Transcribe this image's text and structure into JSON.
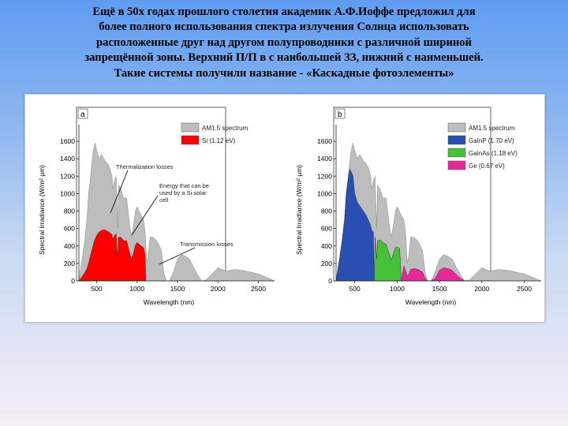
{
  "slide": {
    "lines": [
      "Ещё в 50х годах прошлого столетия академик А.Ф.Иоффе предложил для",
      "более полного использования спектра излучения Солнца использовать",
      "расположенные друг над другом полупроводники с различной шириной",
      "запрещённой зоны. Верхний  П/П в с наибольшей ЗЗ, нижний с наименьшей.",
      "Такие системы получили название - «Каскадные фотоэлементы»"
    ]
  },
  "colors": {
    "spectrum": "#bdbdbd",
    "si": "#ff0000",
    "gainp": "#2a4fb4",
    "gainas": "#46c23a",
    "ge": "#e8289a"
  },
  "chart_data": [
    {
      "type": "area",
      "panel_label": "a",
      "xlabel": "Wavelength (nm)",
      "ylabel": "Spectral Irradiance (W/m² µm)",
      "xlim": [
        280,
        2700
      ],
      "ylim": [
        0,
        1700
      ],
      "xticks": [
        500,
        1000,
        1500,
        2000,
        2500
      ],
      "yticks": [
        0,
        200,
        400,
        600,
        800,
        1000,
        1200,
        1400,
        1600
      ],
      "legend_placement": "top-right",
      "series": [
        {
          "name": "AM1.5 spectrum",
          "color": "#bdbdbd",
          "x": [
            280,
            320,
            350,
            380,
            400,
            420,
            440,
            460,
            480,
            500,
            530,
            560,
            600,
            630,
            660,
            690,
            700,
            720,
            740,
            760,
            770,
            800,
            830,
            870,
            900,
            930,
            950,
            980,
            1000,
            1050,
            1080,
            1100,
            1120,
            1140,
            1160,
            1200,
            1250,
            1300,
            1330,
            1360,
            1400,
            1450,
            1500,
            1550,
            1600,
            1650,
            1700,
            1760,
            1800,
            1850,
            1950,
            2000,
            2100,
            2200,
            2300,
            2400,
            2500,
            2600,
            2700
          ],
          "y": [
            0,
            250,
            450,
            700,
            1000,
            1150,
            1350,
            1500,
            1580,
            1500,
            1400,
            1450,
            1380,
            1350,
            1300,
            1200,
            1050,
            1150,
            1200,
            600,
            1100,
            1050,
            950,
            950,
            700,
            500,
            600,
            800,
            850,
            750,
            700,
            550,
            200,
            300,
            500,
            500,
            450,
            350,
            100,
            0,
            0,
            100,
            250,
            300,
            280,
            250,
            150,
            50,
            0,
            10,
            100,
            150,
            110,
            130,
            120,
            100,
            80,
            40,
            0
          ]
        },
        {
          "name": "Si (1.12 eV)",
          "color": "#ff0000",
          "x": [
            280,
            320,
            350,
            380,
            400,
            420,
            440,
            460,
            480,
            500,
            530,
            560,
            600,
            630,
            660,
            690,
            700,
            720,
            740,
            760,
            770,
            800,
            830,
            870,
            900,
            930,
            950,
            980,
            1000,
            1050,
            1080,
            1100,
            1107
          ],
          "y": [
            0,
            50,
            90,
            140,
            200,
            280,
            350,
            420,
            480,
            520,
            560,
            580,
            585,
            570,
            555,
            530,
            470,
            520,
            540,
            260,
            500,
            500,
            460,
            460,
            350,
            250,
            300,
            410,
            440,
            400,
            380,
            300,
            0
          ]
        }
      ],
      "annotations": [
        "Thermalization losses",
        "Energy that can be used by a Si solar cell",
        "Transmission losses"
      ]
    },
    {
      "type": "area",
      "panel_label": "b",
      "xlabel": "Wavelength (nm)",
      "ylabel": "Spectral Irradiance (W/m² µm)",
      "xlim": [
        280,
        2700
      ],
      "ylim": [
        0,
        1700
      ],
      "xticks": [
        500,
        1000,
        1500,
        2000,
        2500
      ],
      "yticks": [
        0,
        200,
        400,
        600,
        800,
        1000,
        1200,
        1400,
        1600
      ],
      "legend_placement": "top-right",
      "series": [
        {
          "name": "AM1.5 spectrum",
          "color": "#bdbdbd",
          "x": [
            280,
            320,
            350,
            380,
            400,
            420,
            440,
            460,
            480,
            500,
            530,
            560,
            600,
            630,
            660,
            690,
            700,
            720,
            740,
            760,
            770,
            800,
            830,
            870,
            900,
            930,
            950,
            980,
            1000,
            1050,
            1080,
            1100,
            1120,
            1140,
            1160,
            1200,
            1250,
            1300,
            1330,
            1360,
            1400,
            1450,
            1500,
            1550,
            1600,
            1650,
            1700,
            1760,
            1800,
            1850,
            1950,
            2000,
            2100,
            2200,
            2300,
            2400,
            2500,
            2600,
            2700
          ],
          "y": [
            0,
            250,
            450,
            700,
            1000,
            1150,
            1350,
            1500,
            1580,
            1500,
            1400,
            1450,
            1380,
            1350,
            1300,
            1200,
            1050,
            1150,
            1200,
            600,
            1100,
            1050,
            950,
            950,
            700,
            500,
            600,
            800,
            850,
            750,
            700,
            550,
            200,
            300,
            500,
            500,
            450,
            350,
            100,
            0,
            0,
            100,
            250,
            300,
            280,
            250,
            150,
            50,
            0,
            10,
            100,
            150,
            110,
            130,
            120,
            100,
            80,
            40,
            0
          ]
        },
        {
          "name": "GaInP (1.70 eV)",
          "color": "#2a4fb4",
          "x": [
            280,
            320,
            350,
            380,
            400,
            420,
            440,
            460,
            480,
            500,
            530,
            560,
            600,
            630,
            660,
            690,
            700,
            720,
            730
          ],
          "y": [
            0,
            250,
            450,
            700,
            1000,
            1150,
            1280,
            1250,
            1200,
            1000,
            900,
            860,
            800,
            760,
            700,
            630,
            580,
            560,
            0
          ]
        },
        {
          "name": "GaInAs (1.18 eV)",
          "color": "#46c23a",
          "x": [
            730,
            740,
            760,
            770,
            800,
            830,
            870,
            900,
            930,
            950,
            980,
            1000,
            1030,
            1050
          ],
          "y": [
            0,
            500,
            250,
            460,
            470,
            440,
            420,
            330,
            240,
            290,
            380,
            390,
            370,
            0
          ]
        },
        {
          "name": "Ge (0.67 eV)",
          "color": "#e8289a",
          "x": [
            1050,
            1080,
            1100,
            1120,
            1140,
            1160,
            1200,
            1250,
            1300,
            1330,
            1360,
            1400,
            1450,
            1500,
            1550,
            1600,
            1650,
            1700,
            1760,
            1800
          ],
          "y": [
            0,
            170,
            120,
            50,
            80,
            130,
            140,
            130,
            100,
            30,
            0,
            0,
            30,
            120,
            150,
            140,
            120,
            70,
            20,
            0
          ]
        }
      ],
      "annotations": []
    }
  ]
}
